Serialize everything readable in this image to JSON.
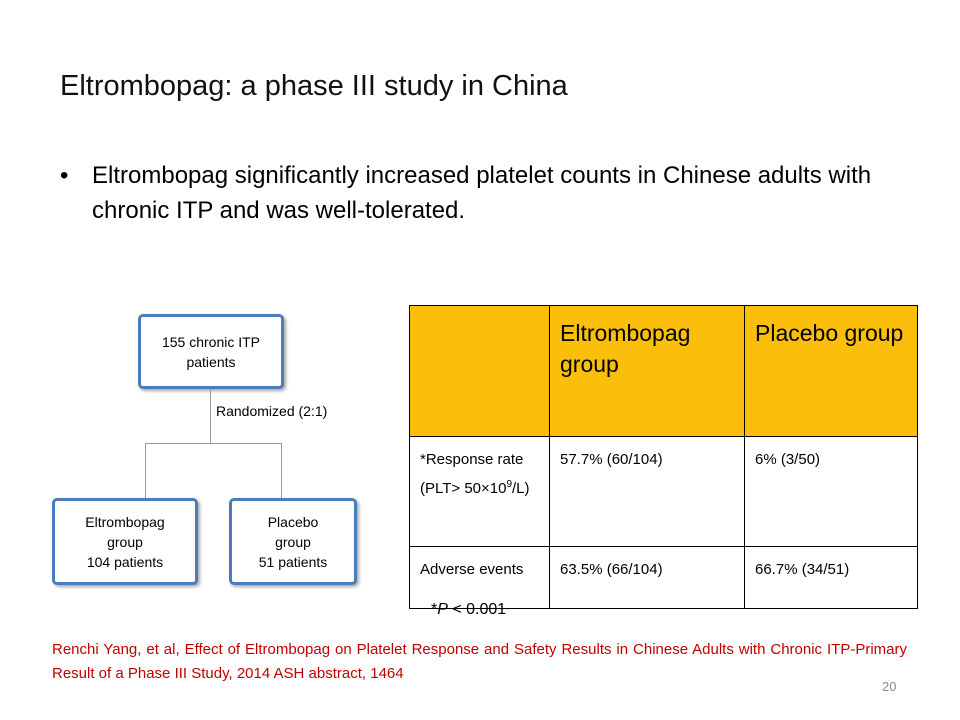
{
  "slide": {
    "title": "Eltrombopag: a phase III study in China",
    "bullet_marker": "•",
    "bullet": "Eltrombopag significantly increased platelet counts in Chinese adults with chronic ITP  and was well-tolerated.",
    "page_number": "20"
  },
  "flowchart": {
    "top_box": [
      "155 chronic ITP",
      "patients"
    ],
    "randomized_label": "Randomized (2:1)",
    "left_box": [
      "Eltrombopag",
      "group",
      "104 patients"
    ],
    "right_box": [
      "Placebo",
      "group",
      "51 patients"
    ],
    "box_border_color": "#4a7ebb"
  },
  "table": {
    "header_color": "#fbbf0b",
    "headers": [
      "",
      "Eltrombopag group",
      "Placebo group"
    ],
    "rows": [
      {
        "label_prefix": "*Response rate (PLT> 50×10",
        "label_sup": "9",
        "label_suffix": "/L)",
        "eltrombopag": "57.7% (60/104)",
        "placebo": "6% (3/50)"
      },
      {
        "label": "Adverse events",
        "eltrombopag": "63.5% (66/104)",
        "placebo": "66.7% (34/51)"
      }
    ]
  },
  "footnote": {
    "prefix": "*",
    "p_symbol": "P",
    "suffix": " < 0.001"
  },
  "citation": "Renchi Yang, et al, Effect of Eltrombopag on Platelet Response and Safety Results  in Chinese Adults with Chronic ITP-Primary Result of a Phase III Study, 2014 ASH abstract, 1464",
  "colors": {
    "citation": "#c00000",
    "page_number": "#8c8c8c"
  }
}
